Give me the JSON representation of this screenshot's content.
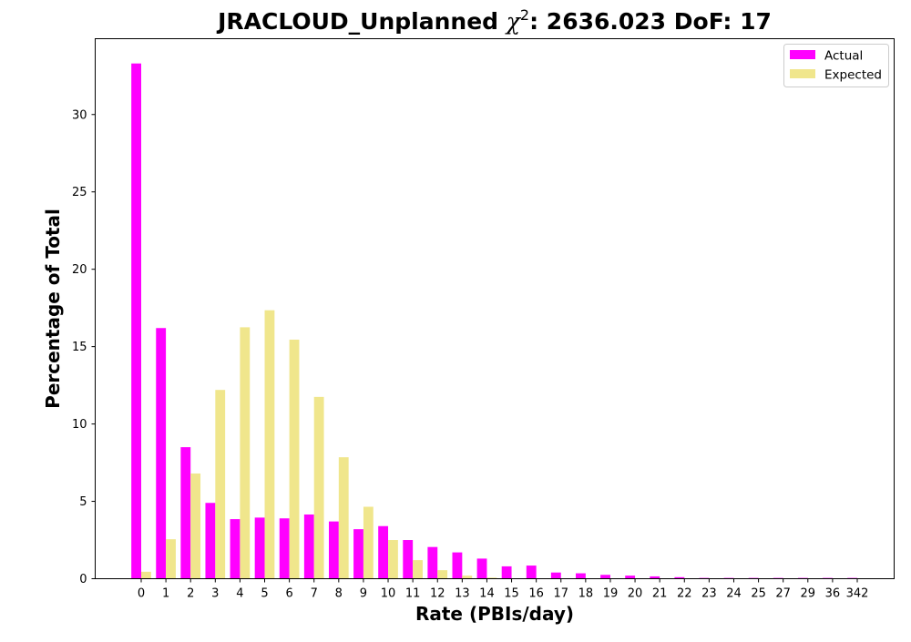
{
  "chart_data": {
    "type": "bar",
    "title_prefix": "JRACLOUD_Unplanned ",
    "title_chi": "χ",
    "title_chi_sup": "2",
    "title_suffix": ": 2636.023 DoF: 17",
    "xlabel": "Rate (PBIs/day)",
    "ylabel": "Percentage of Total",
    "ylim": [
      0,
      34.9
    ],
    "yticks": [
      0,
      5,
      10,
      15,
      20,
      25,
      30
    ],
    "grid": false,
    "legend_position": "top-right",
    "categories": [
      "0",
      "1",
      "2",
      "3",
      "4",
      "5",
      "6",
      "7",
      "8",
      "9",
      "10",
      "11",
      "12",
      "13",
      "14",
      "15",
      "16",
      "17",
      "18",
      "19",
      "20",
      "21",
      "22",
      "23",
      "24",
      "25",
      "27",
      "29",
      "36",
      "342"
    ],
    "series": [
      {
        "name": "Actual",
        "color": "#ff00ff",
        "values": [
          33.3,
          16.2,
          8.5,
          4.9,
          3.85,
          3.95,
          3.9,
          4.15,
          3.7,
          3.2,
          3.4,
          2.5,
          2.05,
          1.7,
          1.3,
          0.8,
          0.85,
          0.4,
          0.35,
          0.25,
          0.2,
          0.15,
          0.1,
          0.05,
          0.05,
          0.05,
          0.05,
          0.05,
          0.05,
          0.05
        ]
      },
      {
        "name": "Expected",
        "color": "#f0e68c",
        "values": [
          0.45,
          2.55,
          6.8,
          12.2,
          16.25,
          17.35,
          15.45,
          11.75,
          7.85,
          4.65,
          2.5,
          1.2,
          0.55,
          0.2,
          0.07,
          0.02,
          0.01,
          0,
          0,
          0,
          0,
          0,
          0,
          0,
          0,
          0,
          0,
          0,
          0,
          0
        ]
      }
    ]
  }
}
